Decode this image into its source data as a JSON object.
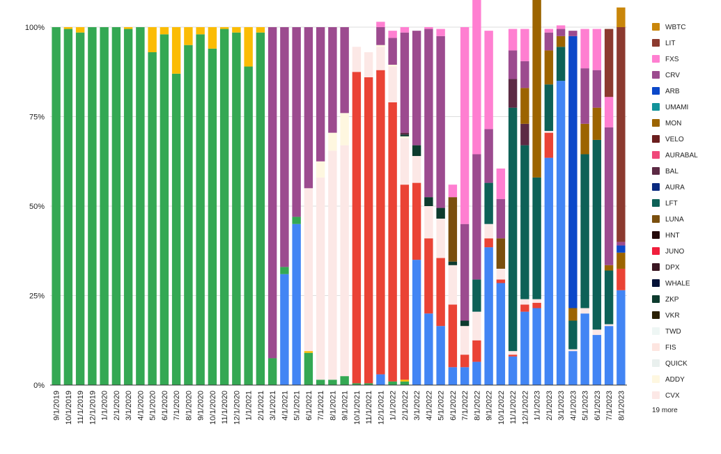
{
  "chart_data": {
    "type": "bar",
    "stacked": true,
    "normalized": true,
    "grid": true,
    "legend_position": "right",
    "ylim": [
      0,
      100
    ],
    "y_ticks": [
      "0%",
      "25%",
      "50%",
      "75%",
      "100%"
    ],
    "legend_more": "19 more",
    "categories": [
      "9/1/2019",
      "10/1/2019",
      "11/1/2019",
      "12/1/2019",
      "1/1/2020",
      "2/1/2020",
      "3/1/2020",
      "4/1/2020",
      "5/1/2020",
      "6/1/2020",
      "7/1/2020",
      "8/1/2020",
      "9/1/2020",
      "10/1/2020",
      "11/1/2020",
      "12/1/2020",
      "1/1/2021",
      "2/1/2021",
      "3/1/2021",
      "4/1/2021",
      "5/1/2021",
      "6/1/2021",
      "7/1/2021",
      "8/1/2021",
      "9/1/2021",
      "10/1/2021",
      "11/1/2021",
      "12/1/2021",
      "1/1/2022",
      "2/1/2022",
      "3/1/2022",
      "4/1/2022",
      "5/1/2022",
      "6/1/2022",
      "7/1/2022",
      "8/1/2022",
      "9/1/2022",
      "10/1/2022",
      "11/1/2022",
      "12/1/2022",
      "1/1/2023",
      "2/1/2023",
      "3/1/2023",
      "4/1/2023",
      "5/1/2023",
      "6/1/2023",
      "7/1/2023",
      "8/1/2023"
    ],
    "series": [
      {
        "name": "",
        "color": "#4285f4",
        "values": [
          0,
          0,
          0,
          0,
          0,
          0,
          0,
          0,
          0,
          0,
          0,
          0,
          0,
          0,
          0,
          0,
          0,
          0,
          0,
          31,
          45,
          0,
          0,
          0,
          0,
          0,
          0,
          3,
          0,
          0,
          35,
          20,
          16.5,
          5,
          5,
          6.5,
          38.5,
          28.5,
          8,
          20.5,
          21.5,
          63.5,
          85,
          9.5,
          20,
          14,
          16.5,
          26.5
        ]
      },
      {
        "name": "",
        "color": "#34a853",
        "values": [
          100,
          99.5,
          98.5,
          100,
          100,
          100,
          99.5,
          100,
          93,
          98,
          87,
          95,
          98,
          94,
          99.5,
          98.5,
          89,
          98.5,
          7.5,
          2,
          2,
          9,
          1.5,
          1.5,
          2.5,
          0.5,
          0.5,
          0,
          1,
          1,
          0,
          0,
          0,
          0,
          0,
          0,
          0,
          0,
          0,
          0,
          0,
          0,
          0,
          0,
          0,
          0,
          0,
          0
        ]
      },
      {
        "name": "",
        "color": "#fbbc04",
        "values": [
          0,
          0.5,
          1.5,
          0,
          0,
          0,
          0.5,
          0,
          7,
          2,
          13,
          5,
          2,
          6,
          0.5,
          1.5,
          11,
          1.5,
          0,
          0,
          0,
          0.5,
          0,
          0,
          0,
          0,
          0,
          0,
          0,
          0.5,
          0,
          0,
          0,
          0,
          0,
          0,
          0,
          0,
          0,
          0,
          0,
          0,
          0,
          0,
          0,
          0,
          0,
          0
        ]
      },
      {
        "name": "",
        "color": "#ea4335",
        "values": [
          0,
          0,
          0,
          0,
          0,
          0,
          0,
          0,
          0,
          0,
          0,
          0,
          0,
          0,
          0,
          0,
          0,
          0,
          0,
          0,
          0,
          0,
          0,
          0,
          0,
          87,
          85.5,
          85,
          78,
          54.5,
          21.5,
          21,
          19,
          17.5,
          3.5,
          6,
          2.5,
          1,
          0.5,
          2,
          1.5,
          7,
          0,
          0,
          0,
          0,
          0,
          6
        ]
      },
      {
        "name": "CVX",
        "color": "#fce8e6",
        "values": [
          0,
          0,
          0,
          0,
          0,
          0,
          0,
          0,
          0,
          0,
          0,
          0,
          0,
          0,
          0,
          0,
          0,
          0,
          0,
          0,
          0,
          45.5,
          56.5,
          64,
          64.5,
          7,
          7,
          6.5,
          10,
          13,
          7.5,
          9,
          11,
          11,
          8,
          8,
          4,
          3,
          1,
          1.5,
          1,
          0.5,
          0,
          0.5,
          1.5,
          1.5,
          0.5,
          0
        ]
      },
      {
        "name": "ADDY",
        "color": "#fef7e0",
        "values": [
          0,
          0,
          0,
          0,
          0,
          0,
          0,
          0,
          0,
          0,
          0,
          0,
          0,
          0,
          0,
          0,
          0,
          0,
          0,
          0,
          0,
          0,
          4.5,
          5,
          9,
          0,
          0,
          0.5,
          0.5,
          0.5,
          0,
          0,
          0,
          0,
          0,
          0,
          0,
          0,
          0,
          0,
          0,
          0,
          0,
          0,
          0,
          0,
          0,
          0
        ]
      },
      {
        "name": "ZKP",
        "color": "#0d3b2e",
        "values": [
          0,
          0,
          0,
          0,
          0,
          0,
          0,
          0,
          0,
          0,
          0,
          0,
          0,
          0,
          0,
          0,
          0,
          0,
          0,
          0,
          0,
          0,
          0,
          0,
          0,
          0,
          0,
          0,
          0,
          0.5,
          3,
          2.5,
          3,
          1,
          1.5,
          0,
          0,
          0,
          0,
          0,
          0,
          0,
          0,
          0,
          0,
          0,
          0,
          0
        ]
      },
      {
        "name": "LFT",
        "color": "#0d6157",
        "values": [
          0,
          0,
          0,
          0,
          0,
          0,
          0,
          0,
          0,
          0,
          0,
          0,
          0,
          0,
          0,
          0,
          0,
          0,
          0,
          0,
          0,
          0,
          0,
          0,
          0,
          0,
          0,
          0,
          0,
          0,
          0,
          0,
          0,
          0,
          0,
          9,
          11.5,
          0,
          68,
          43,
          34,
          13,
          9.5,
          8,
          43,
          53,
          15,
          0
        ]
      },
      {
        "name": "LUNA",
        "color": "#7a4f0e",
        "values": [
          0,
          0,
          0,
          0,
          0,
          0,
          0,
          0,
          0,
          0,
          0,
          0,
          0,
          0,
          0,
          0,
          0,
          0,
          0,
          0,
          0,
          0,
          0,
          0,
          0,
          0,
          0,
          0,
          0,
          0,
          0,
          0,
          0,
          18,
          0,
          0,
          0,
          8.5,
          0,
          0,
          0,
          0,
          0,
          0,
          0,
          0,
          0,
          0
        ]
      },
      {
        "name": "BAL",
        "color": "#5c2a44",
        "values": [
          0,
          0,
          0,
          0,
          0,
          0,
          0,
          0,
          0,
          0,
          0,
          0,
          0,
          0,
          0,
          0,
          0,
          0,
          0,
          0,
          0,
          0,
          0,
          0,
          0,
          0,
          0,
          0,
          0,
          0.5,
          0,
          0,
          0,
          0,
          0,
          0,
          0,
          0,
          8,
          6,
          0,
          0,
          0,
          0,
          0,
          0,
          0,
          0
        ]
      },
      {
        "name": "MON",
        "color": "#9c6400",
        "values": [
          0,
          0,
          0,
          0,
          0,
          0,
          0,
          0,
          0,
          0,
          0,
          0,
          0,
          0,
          0,
          0,
          0,
          0,
          0,
          0,
          0,
          0,
          0,
          0,
          0,
          0,
          0,
          0,
          0,
          0,
          0,
          0,
          0,
          0,
          0,
          0,
          0,
          0,
          0,
          10,
          57,
          9.5,
          3,
          3.5,
          8.5,
          9,
          1.5,
          4.5
        ]
      },
      {
        "name": "ARB",
        "color": "#0b48c9",
        "values": [
          0,
          0,
          0,
          0,
          0,
          0,
          0,
          0,
          0,
          0,
          0,
          0,
          0,
          0,
          0,
          0,
          0,
          0,
          0,
          0,
          0,
          0,
          0,
          0,
          0,
          0,
          0,
          0,
          0,
          0,
          0,
          0,
          0,
          0,
          0,
          0,
          0,
          0,
          0,
          0,
          0,
          0,
          0,
          76,
          0,
          0,
          0,
          2
        ]
      },
      {
        "name": "CRV",
        "color": "#9c4b8f",
        "values": [
          0,
          0,
          0,
          0,
          0,
          0,
          0,
          0,
          0,
          0,
          0,
          0,
          0,
          0,
          0,
          0,
          0,
          0,
          92.5,
          67,
          53,
          45,
          37.5,
          29.5,
          24,
          0,
          0,
          5,
          7.5,
          28,
          32,
          47,
          48,
          0,
          27,
          35,
          15,
          11,
          8,
          7.5,
          12,
          5,
          2,
          1.5,
          15.5,
          10.5,
          38.5,
          1
        ]
      },
      {
        "name": "FXS",
        "color": "#ff7fd1",
        "values": [
          0,
          0,
          0,
          0,
          0,
          0,
          0,
          0,
          0,
          0,
          0,
          0,
          0,
          0,
          0,
          0,
          0,
          0,
          0,
          0,
          0,
          0,
          0,
          0,
          0,
          0,
          0,
          1.5,
          2,
          1.5,
          0,
          0.5,
          2,
          3.5,
          55,
          44.5,
          27.5,
          8.5,
          6,
          9,
          4.5,
          1,
          1,
          0,
          11,
          11.5,
          8.5,
          0
        ]
      },
      {
        "name": "LIT",
        "color": "#8c3a2f",
        "values": [
          0,
          0,
          0,
          0,
          0,
          0,
          0,
          0,
          0,
          0,
          0,
          0,
          0,
          0,
          0,
          0,
          0,
          0,
          0,
          0,
          0,
          0,
          0,
          0,
          0,
          0,
          0,
          0,
          0,
          0,
          0,
          0,
          0,
          0,
          0,
          0,
          0,
          0,
          0,
          0,
          0,
          0,
          0,
          0,
          0,
          0,
          19,
          60
        ]
      },
      {
        "name": "WBTC",
        "color": "#c9860a",
        "values": [
          0,
          0,
          0,
          0,
          0,
          0,
          0,
          0,
          0,
          0,
          0,
          0,
          0,
          0,
          0,
          0,
          0,
          0,
          0,
          0,
          0,
          0,
          0,
          0,
          0,
          0,
          0,
          0,
          0,
          0,
          0,
          0,
          0,
          0,
          0,
          0,
          0,
          0,
          0,
          0,
          0,
          0,
          0,
          0,
          0,
          0,
          0,
          5.5
        ]
      }
    ],
    "legend": [
      {
        "name": "WBTC",
        "color": "#c9860a"
      },
      {
        "name": "LIT",
        "color": "#8c3a2f"
      },
      {
        "name": "FXS",
        "color": "#ff7fd1"
      },
      {
        "name": "CRV",
        "color": "#9c4b8f"
      },
      {
        "name": "ARB",
        "color": "#0b48c9"
      },
      {
        "name": "UMAMI",
        "color": "#12939a"
      },
      {
        "name": "MON",
        "color": "#9c6400"
      },
      {
        "name": "VELO",
        "color": "#6b1e1e"
      },
      {
        "name": "AURABAL",
        "color": "#f0487a"
      },
      {
        "name": "BAL",
        "color": "#5c2a44"
      },
      {
        "name": "AURA",
        "color": "#0a2a80"
      },
      {
        "name": "LFT",
        "color": "#0d6157"
      },
      {
        "name": "LUNA",
        "color": "#7a4f0e"
      },
      {
        "name": "HNT",
        "color": "#24090a"
      },
      {
        "name": "JUNO",
        "color": "#f01e3c"
      },
      {
        "name": "DPX",
        "color": "#3a1622"
      },
      {
        "name": "WHALE",
        "color": "#051338"
      },
      {
        "name": "ZKP",
        "color": "#0d3b2e"
      },
      {
        "name": "VKR",
        "color": "#2b2105"
      },
      {
        "name": "TWD",
        "color": "#eef6f4"
      },
      {
        "name": "FIS",
        "color": "#fde5e0"
      },
      {
        "name": "QUICK",
        "color": "#e9f0ee"
      },
      {
        "name": "ADDY",
        "color": "#fef7e0"
      },
      {
        "name": "CVX",
        "color": "#fce8e6"
      }
    ]
  }
}
